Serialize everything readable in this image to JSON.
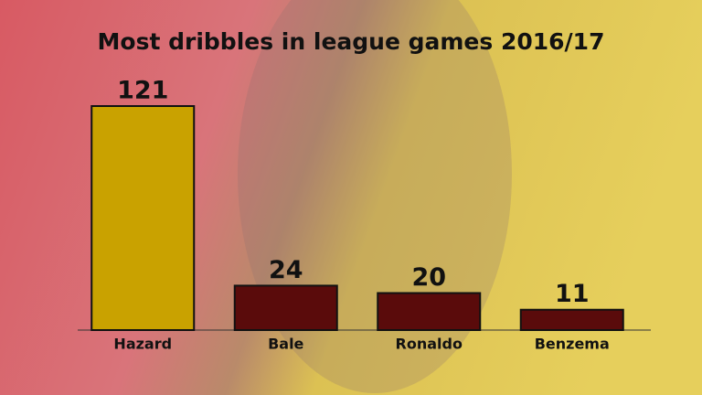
{
  "chart_data": {
    "type": "bar",
    "title": "Most dribbles in league games 2016/17",
    "categories": [
      "Hazard",
      "Bale",
      "Ronaldo",
      "Benzema"
    ],
    "values": [
      121,
      24,
      20,
      11
    ],
    "colors": [
      "#c9a200",
      "#5a0b0b",
      "#5a0b0b",
      "#5a0b0b"
    ]
  }
}
